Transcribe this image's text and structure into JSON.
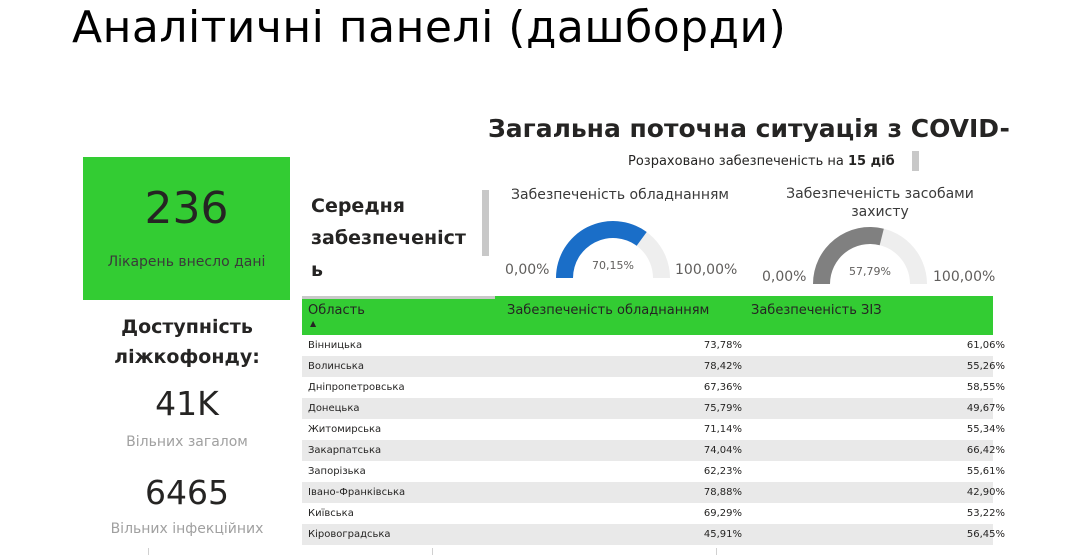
{
  "slide_title": "Аналітичні панелі (дашборди)",
  "report": {
    "title": "Загальна поточна ситуація з COVID-",
    "note_prefix": "Розраховано забезпеченість на ",
    "note_days": "15 діб"
  },
  "card": {
    "value": "236",
    "label": "Лікарень внесло дані"
  },
  "availability": {
    "title": "Доступність ліжкофонду:",
    "total_value": "41K",
    "total_label": "Вільних загалом",
    "infect_value": "6465",
    "infect_label": "Вільних інфекційних"
  },
  "avg_title": "Середня забезпеченіст ь",
  "gauges": [
    {
      "title": "Забезпеченість обладнанням",
      "min": "0,00%",
      "max": "100,00%",
      "center": "70,15%",
      "value": 0.7015,
      "color": "#1a6ec8"
    },
    {
      "title": "Забезпеченість засобами захисту",
      "min": "0,00%",
      "max": "100,00%",
      "center": "57,79%",
      "value": 0.5779,
      "color": "#808080"
    }
  ],
  "table": {
    "headers": [
      "Область",
      "Забезпеченість обладнанням",
      "Забезпеченість ЗІЗ"
    ],
    "sort_indicator": "▲",
    "rows": [
      [
        "Вінницька",
        "73,78%",
        "61,06%"
      ],
      [
        "Волинська",
        "78,42%",
        "55,26%"
      ],
      [
        "Дніпропетровська",
        "67,36%",
        "58,55%"
      ],
      [
        "Донецька",
        "75,79%",
        "49,67%"
      ],
      [
        "Житомирська",
        "71,14%",
        "55,34%"
      ],
      [
        "Закарпатська",
        "74,04%",
        "66,42%"
      ],
      [
        "Запорізька",
        "62,23%",
        "55,61%"
      ],
      [
        "Івано-Франківська",
        "78,88%",
        "42,90%"
      ],
      [
        "Київська",
        "69,29%",
        "53,22%"
      ],
      [
        "Кіровоградська",
        "45,91%",
        "56,45%"
      ]
    ]
  },
  "colors": {
    "accent_green": "#33cc33",
    "gauge_track": "#eeeeee"
  }
}
